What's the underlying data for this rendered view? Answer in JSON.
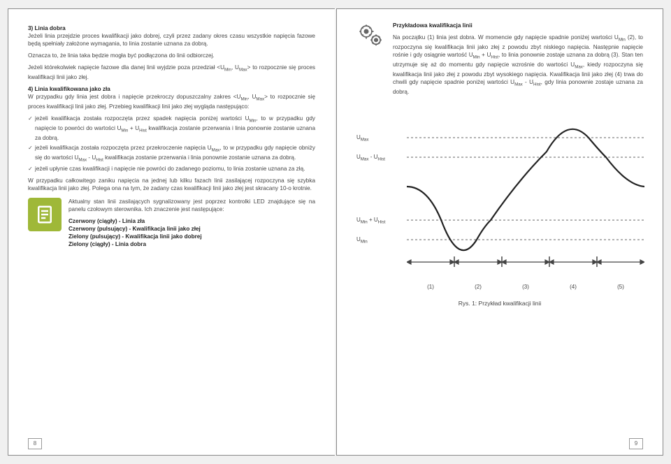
{
  "left": {
    "s3_title": "3) Linia dobra",
    "s3_p1": "Jeżeli linia przejdzie proces kwalifikacji jako dobrej, czyli przez zadany okres czasu wszystkie napięcia fazowe będą spełniały założone wymagania, to linia zostanie uznana za dobrą.",
    "s3_p2": "Oznacza to, że linia taka będzie mogła być podłączona do linii odbiorczej.",
    "s3_p3a": "Jeżeli którekolwiek napięcie fazowe dla danej linii wyjdzie poza przedział <U",
    "s3_p3b": ", U",
    "s3_p3c": "> to rozpocznie się proces kwalifikacji linii jako złej.",
    "s4_title": "4) Linia kwalifikowana jako zła",
    "s4_p1a": "W przypadku gdy linia jest dobra i napięcie przekroczy dopuszczalny zakres <U",
    "s4_p1b": ", U",
    "s4_p1c": "> to rozpocznie się proces kwalifikacji linii jako złej. Przebieg kwalifikacji linii jako złej wygląda następująco:",
    "s4_li1a": "jeżeli kwalifikacja została rozpoczęta przez spadek napięcia poniżej wartości U",
    "s4_li1b": ", to w przypadku gdy napięcie to powróci do wartości U",
    "s4_li1c": " + U",
    "s4_li1d": " kwalifikacja zostanie przerwania i linia ponownie zostanie uznana za dobrą.",
    "s4_li2a": "jeżeli kwalifikacja została rozpoczęta przez przekroczenie napięcia U",
    "s4_li2b": ", to w przypadku gdy napięcie obniży się do wartości U",
    "s4_li2c": " - U",
    "s4_li2d": " kwalifikacja zostanie przerwania i linia ponownie zostanie uznana za dobrą.",
    "s4_li3": "jeżeli upłynie czas kwalifikacji i napięcie nie powróci do zadanego poziomu, to linia zostanie uznana za złą.",
    "s4_p2": "W przypadku całkowitego zaniku napięcia na jednej lub kilku fazach linii zasilającej rozpoczyna się szybka kwalifikacja linii jako złej. Polega ona na tym, że zadany czas kwalifikacji linii jako złej jest skracany 10-o krotnie.",
    "info_intro": "Aktualny stan linii zasilających sygnalizowany jest poprzez kontrolki LED znajdujące się na panelu czołowym sterownika. Ich znaczenie jest następujące:",
    "info_l1": "Czerwony (ciągły) - Linia zła",
    "info_l2": "Czerwony (pulsujący) - Kwalifikacja linii jako złej",
    "info_l3": "Zielony (pulsujący) - Kwalifikacja linii jako dobrej",
    "info_l4": "Zielony (ciągły) - Linia dobra",
    "page_num": "8"
  },
  "right": {
    "title": "Przykładowa kwalifikacja linii",
    "p1a": "Na początku (1) linia jest dobra. W momencie gdy napięcie spadnie poniżej wartości U",
    "p1b": " (2), to rozpoczyna się kwalifikacja linii jako złej z powodu zbyt niskiego napięcia. Następnie napięcie rośnie i gdy osiągnie wartość U",
    "p1c": " + U",
    "p1d": ", to linia ponownie zostaje uznana za dobrą (3). Stan ten utrzymuje się aż do momentu gdy napięcie wzrośnie do wartości U",
    "p1e": ", kiedy rozpoczyna się kwalifikacja linii jako złej z powodu zbyt wysokiego napięcia. Kwalifikacja linii jako złej (4) trwa do chwili gdy napięcie spadnie poniżej wartości U",
    "p1f": " - U",
    "p1g": ", gdy linia ponownie zostaje uznana za dobrą.",
    "chart": {
      "y_labels": [
        "U Max",
        "U Max - U Hist",
        "U Min + U Hist",
        "U Min"
      ],
      "y_positions": [
        30,
        58,
        148,
        176
      ],
      "x_labels": [
        "(1)",
        "(2)",
        "(3)",
        "(4)",
        "(5)"
      ],
      "caption": "Rys. 1: Przykład kwalifikacji linii",
      "line_color": "#222",
      "dashed_color": "#666"
    },
    "page_num": "9"
  },
  "subs": {
    "min": "Min",
    "max": "Max",
    "hist": "Hist"
  }
}
